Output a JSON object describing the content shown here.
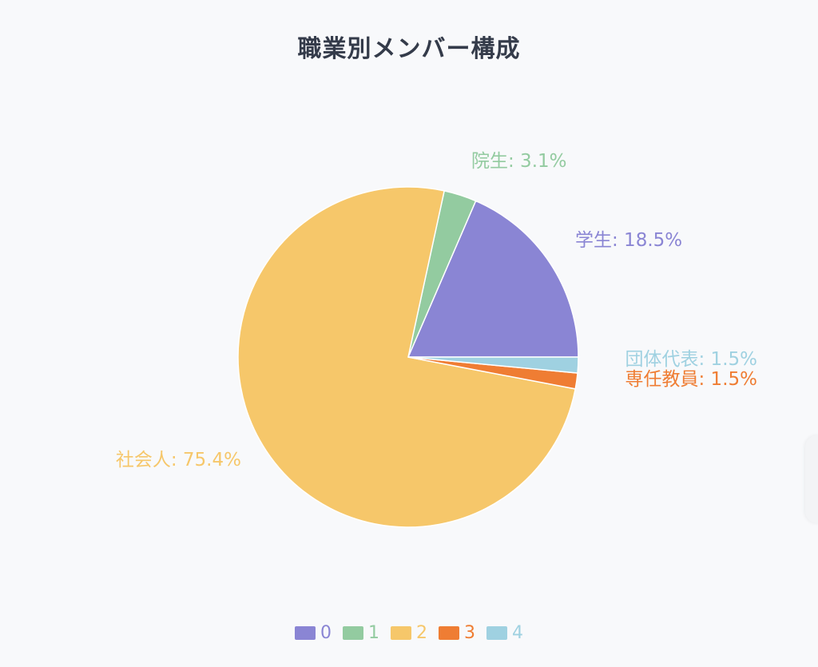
{
  "chart_data": {
    "type": "pie",
    "title": "職業別メンバー構成",
    "slices": [
      {
        "legend": "0",
        "name": "学生",
        "value": 18.5,
        "label": "学生: 18.5%",
        "color": "#8a85d4"
      },
      {
        "legend": "1",
        "name": "院生",
        "value": 3.1,
        "label": "院生: 3.1%",
        "color": "#93cba0"
      },
      {
        "legend": "2",
        "name": "社会人",
        "value": 75.4,
        "label": "社会人: 75.4%",
        "color": "#f6c76a"
      },
      {
        "legend": "3",
        "name": "専任教員",
        "value": 1.5,
        "label": "専任教員: 1.5%",
        "color": "#ef7d33"
      },
      {
        "legend": "4",
        "name": "団体代表",
        "value": 1.5,
        "label": "団体代表: 1.5%",
        "color": "#9fd1e1"
      }
    ],
    "legend_position": "bottom",
    "start_angle_deg": 0,
    "direction": "counterclockwise"
  }
}
